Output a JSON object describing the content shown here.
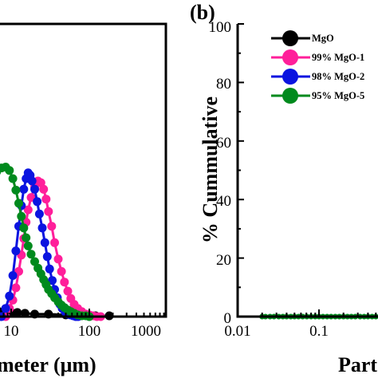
{
  "chart_data": [
    {
      "panel": "a",
      "type": "line",
      "xscale": "log",
      "xlim": [
        1,
        1000
      ],
      "xticks": [
        "10",
        "100",
        "1000"
      ],
      "xlabel": "meter (μm)",
      "series": [
        {
          "color": "#000000",
          "x": [
            2,
            3,
            4,
            5,
            6,
            7,
            8,
            9,
            10,
            12,
            15,
            20,
            30,
            50,
            80,
            120,
            180
          ],
          "y": [
            0.3,
            0.4,
            0.5,
            0.5,
            0.6,
            0.6,
            0.6,
            0.6,
            0.5,
            0.5,
            0.4,
            0.3,
            0.3,
            0.2,
            0.2,
            0.1,
            0.1
          ]
        },
        {
          "color": "#ff1f9a",
          "x": [
            8.5,
            9.5,
            10.5,
            11.5,
            12.5,
            13.5,
            14.5,
            15.5,
            16.5,
            18,
            20,
            22,
            24,
            26,
            28,
            30,
            33,
            36,
            40,
            44,
            48,
            53,
            58,
            64,
            71,
            80,
            90,
            100,
            112,
            125,
            140
          ],
          "y": [
            0.0,
            1.0,
            2.0,
            3.5,
            5.5,
            7.5,
            9.5,
            11.5,
            13.0,
            14.5,
            15.8,
            16.5,
            16.3,
            15.5,
            14.3,
            12.8,
            11.0,
            9.0,
            7.0,
            5.5,
            4.2,
            3.1,
            2.2,
            1.5,
            1.0,
            0.6,
            0.3,
            0.2,
            0.1,
            0.0,
            0.0
          ]
        },
        {
          "color": "#0b14e0",
          "x": [
            7.5,
            8.5,
            9.5,
            10.5,
            11.5,
            12.5,
            13.5,
            14.5,
            15.5,
            16.5,
            17.5,
            18.5,
            20,
            21.5,
            23,
            25,
            27,
            29,
            31,
            33.5,
            36,
            39,
            42,
            45,
            49,
            53,
            57,
            62,
            67,
            72
          ],
          "y": [
            0.0,
            1.0,
            2.5,
            5.0,
            8.0,
            11.0,
            13.5,
            15.5,
            16.8,
            17.5,
            17.2,
            16.5,
            15.5,
            14.0,
            12.5,
            10.8,
            9.0,
            7.3,
            5.8,
            4.4,
            3.3,
            2.3,
            1.5,
            1.0,
            0.6,
            0.3,
            0.2,
            0.1,
            0.0,
            0.0
          ]
        },
        {
          "color": "#008a1d",
          "x": [
            1.5,
            2.3,
            3.5,
            4.5,
            5.5,
            6.5,
            7.5,
            8.5,
            9.5,
            10.5,
            11.5,
            12.5,
            13.5,
            14.5,
            15.5,
            16.5,
            18,
            20,
            22,
            24,
            26,
            28,
            30,
            33,
            36,
            40,
            44,
            48,
            53,
            58,
            64,
            71,
            80,
            90,
            100
          ],
          "y": [
            10.0,
            12.0,
            14.5,
            15.8,
            16.8,
            17.6,
            18.1,
            18.2,
            17.8,
            16.8,
            15.4,
            13.8,
            12.2,
            10.8,
            9.6,
            8.6,
            7.6,
            6.7,
            5.9,
            5.2,
            4.5,
            3.9,
            3.3,
            2.8,
            2.3,
            1.8,
            1.4,
            1.1,
            0.8,
            0.6,
            0.4,
            0.2,
            0.1,
            0.1,
            0.0
          ]
        }
      ]
    },
    {
      "panel": "b",
      "panel_label": "(b)",
      "type": "line",
      "xscale": "log",
      "xlim": [
        0.01,
        1
      ],
      "ylim": [
        0,
        100
      ],
      "xticks": [
        "0.01",
        "0.1"
      ],
      "yticks": [
        "0",
        "20",
        "40",
        "60",
        "80",
        "100"
      ],
      "xlabel": "Part",
      "ylabel": "% Cummulative",
      "legend_placement": "top-left",
      "legend": [
        {
          "label": "MgO",
          "color": "#000000"
        },
        {
          "label": "99% MgO-1",
          "color": "#ff1f9a"
        },
        {
          "label": "98% MgO-2",
          "color": "#0b14e0"
        },
        {
          "label": "95% MgO-5",
          "color": "#008a1d"
        }
      ],
      "series": [
        {
          "color": "#008a1d",
          "x": [
            0.02,
            0.022,
            0.025,
            0.028,
            0.032,
            0.036,
            0.04,
            0.045,
            0.05,
            0.056,
            0.063,
            0.071,
            0.08,
            0.09,
            0.1,
            0.112,
            0.126,
            0.141,
            0.159,
            0.178,
            0.2,
            0.224,
            0.25,
            0.28,
            0.32,
            0.36,
            0.4,
            0.45,
            0.5,
            0.56,
            0.63,
            0.71,
            0.8,
            0.9
          ],
          "y": [
            0,
            0,
            0,
            0,
            0,
            0,
            0,
            0,
            0,
            0,
            0,
            0,
            0,
            0,
            0,
            0,
            0,
            0,
            0,
            0,
            0,
            0,
            0,
            0,
            0,
            0,
            0,
            0,
            0,
            0,
            0,
            0,
            0,
            0
          ]
        }
      ]
    }
  ]
}
